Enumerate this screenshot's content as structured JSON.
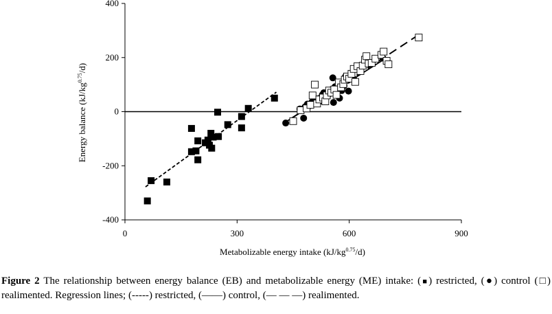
{
  "chart_data": {
    "type": "scatter",
    "xlabel": "Metabolizable energy intake (kJ/kg",
    "xlabel_sup": "0.75",
    "xlabel_end": "/d)",
    "ylabel": "Energy balance (kJ/kg",
    "ylabel_sup": "0.75",
    "ylabel_end": "/d)",
    "xlim": [
      0,
      900
    ],
    "ylim": [
      -400,
      400
    ],
    "xticks": [
      0,
      300,
      600,
      900
    ],
    "yticks": [
      -400,
      -200,
      0,
      200,
      400
    ],
    "xtick_labels": [
      "0",
      "300",
      "600",
      "900"
    ],
    "ytick_labels": [
      "-400",
      "-200",
      "0",
      "200",
      "400"
    ],
    "zero_line": true,
    "series": [
      {
        "name": "restricted",
        "marker": "filled-square",
        "points": [
          [
            60,
            -330
          ],
          [
            70,
            -255
          ],
          [
            112,
            -260
          ],
          [
            178,
            -62
          ],
          [
            178,
            -148
          ],
          [
            190,
            -145
          ],
          [
            195,
            -108
          ],
          [
            195,
            -178
          ],
          [
            215,
            -115
          ],
          [
            222,
            -105
          ],
          [
            226,
            -124
          ],
          [
            230,
            -80
          ],
          [
            232,
            -135
          ],
          [
            236,
            -94
          ],
          [
            248,
            -2
          ],
          [
            250,
            -92
          ],
          [
            275,
            -48
          ],
          [
            312,
            -18
          ],
          [
            312,
            -60
          ],
          [
            330,
            12
          ],
          [
            400,
            50
          ]
        ]
      },
      {
        "name": "control",
        "marker": "filled-circle",
        "points": [
          [
            430,
            -42
          ],
          [
            468,
            10
          ],
          [
            478,
            -24
          ],
          [
            482,
            18
          ],
          [
            488,
            28
          ],
          [
            494,
            22
          ],
          [
            500,
            35
          ],
          [
            506,
            42
          ],
          [
            512,
            30
          ],
          [
            518,
            48
          ],
          [
            524,
            40
          ],
          [
            528,
            62
          ],
          [
            532,
            70
          ],
          [
            538,
            56
          ],
          [
            545,
            64
          ],
          [
            550,
            80
          ],
          [
            556,
            125
          ],
          [
            558,
            34
          ],
          [
            562,
            92
          ],
          [
            570,
            100
          ],
          [
            574,
            50
          ],
          [
            580,
            78
          ],
          [
            586,
            96
          ],
          [
            590,
            130
          ],
          [
            596,
            116
          ],
          [
            598,
            76
          ],
          [
            602,
            126
          ],
          [
            612,
            120
          ],
          [
            650,
            185
          ],
          [
            690,
            198
          ]
        ]
      },
      {
        "name": "realimented",
        "marker": "open-square",
        "points": [
          [
            450,
            -35
          ],
          [
            470,
            5
          ],
          [
            486,
            12
          ],
          [
            496,
            25
          ],
          [
            502,
            60
          ],
          [
            508,
            100
          ],
          [
            514,
            30
          ],
          [
            520,
            45
          ],
          [
            530,
            52
          ],
          [
            536,
            38
          ],
          [
            540,
            60
          ],
          [
            546,
            78
          ],
          [
            552,
            70
          ],
          [
            560,
            82
          ],
          [
            566,
            62
          ],
          [
            572,
            108
          ],
          [
            578,
            90
          ],
          [
            584,
            102
          ],
          [
            588,
            118
          ],
          [
            594,
            130
          ],
          [
            600,
            122
          ],
          [
            606,
            140
          ],
          [
            612,
            158
          ],
          [
            616,
            110
          ],
          [
            622,
            168
          ],
          [
            630,
            150
          ],
          [
            636,
            170
          ],
          [
            642,
            192
          ],
          [
            646,
            205
          ],
          [
            652,
            178
          ],
          [
            660,
            180
          ],
          [
            670,
            196
          ],
          [
            686,
            210
          ],
          [
            692,
            222
          ],
          [
            700,
            188
          ],
          [
            705,
            175
          ],
          [
            786,
            274
          ]
        ]
      }
    ],
    "regression_lines": [
      {
        "name": "restricted",
        "style": "short-dash",
        "from": [
          55,
          -278
        ],
        "to": [
          405,
          72
        ]
      },
      {
        "name": "control",
        "style": "solid",
        "from": [
          428,
          -40
        ],
        "to": [
          695,
          195
        ]
      },
      {
        "name": "realimented",
        "style": "long-dash",
        "from": [
          445,
          -25
        ],
        "to": [
          790,
          288
        ]
      }
    ]
  },
  "caption": {
    "label": "Figure 2",
    "text_1": " The relationship between energy balance (EB) and metabolizable energy (ME) intake: (",
    "restricted_symbol": "■",
    "text_2": ") restricted, (",
    "control_symbol": "●",
    "text_3": ") control (",
    "realimented_symbol": "□",
    "text_4": ") realimented. Regression lines; (",
    "restricted_line": "-----",
    "text_5": ") restricted, (",
    "control_line": "——",
    "text_6": ") control, (",
    "realimented_line": "— — —",
    "text_7": ") realimented."
  }
}
